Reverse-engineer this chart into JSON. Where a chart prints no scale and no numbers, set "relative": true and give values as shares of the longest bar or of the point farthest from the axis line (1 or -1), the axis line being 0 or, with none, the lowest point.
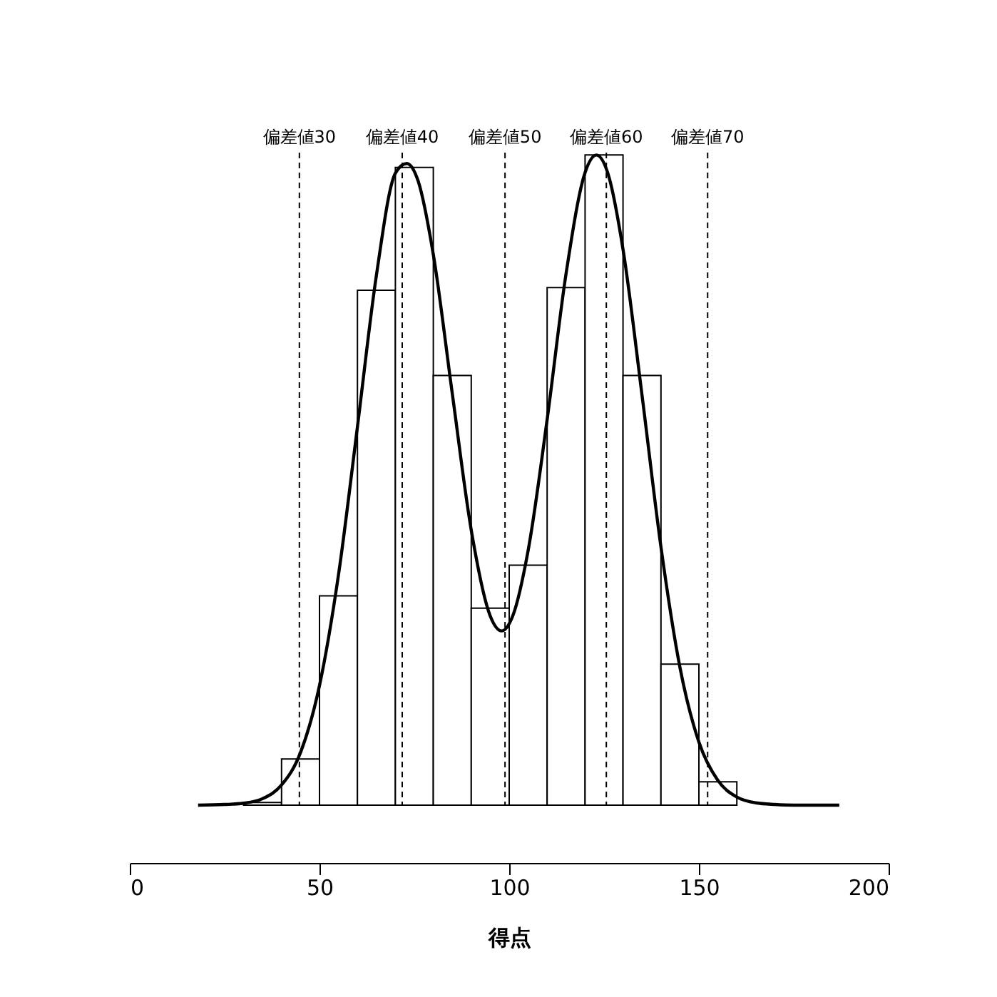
{
  "chart_data": {
    "type": "histogram",
    "relative": true,
    "xlabel": "得点",
    "xlim": [
      0,
      200
    ],
    "xticks": [
      0,
      50,
      100,
      150,
      200
    ],
    "grid": false,
    "color": "#000000",
    "bins": [
      30,
      40,
      50,
      60,
      70,
      80,
      90,
      100,
      110,
      120,
      130,
      140,
      150,
      160
    ],
    "values": [
      0.004,
      0.071,
      0.322,
      0.792,
      0.981,
      0.661,
      0.303,
      0.369,
      0.796,
      1.0,
      0.661,
      0.217,
      0.036
    ],
    "series": [
      {
        "type": "line",
        "color": "#000000",
        "x": [
          18,
          25,
          30,
          35,
          40,
          45,
          50,
          55,
          60,
          65,
          70,
          73,
          76,
          80,
          85,
          90,
          95,
          98,
          101,
          105,
          110,
          115,
          120,
          123,
          126,
          130,
          135,
          140,
          145,
          150,
          155,
          160,
          165,
          170,
          175,
          187
        ],
        "values": [
          0,
          0.001,
          0.003,
          0.01,
          0.031,
          0.081,
          0.184,
          0.354,
          0.582,
          0.815,
          0.972,
          0.987,
          0.96,
          0.847,
          0.633,
          0.423,
          0.291,
          0.268,
          0.292,
          0.392,
          0.593,
          0.818,
          0.973,
          1.0,
          0.972,
          0.855,
          0.631,
          0.397,
          0.212,
          0.097,
          0.038,
          0.0125,
          0.0035,
          0.001,
          0,
          0
        ]
      }
    ],
    "ref_lines": [
      {
        "axis": "x",
        "value": 44.7,
        "label": "偏差値30",
        "color": "#000000",
        "line_style": "dashed"
      },
      {
        "axis": "x",
        "value": 71.8,
        "label": "偏差値40",
        "color": "#000000",
        "line_style": "dashed"
      },
      {
        "axis": "x",
        "value": 98.9,
        "label": "偏差値50",
        "color": "#000000",
        "line_style": "dashed"
      },
      {
        "axis": "x",
        "value": 125.6,
        "label": "偏差値60",
        "color": "#000000",
        "line_style": "dashed"
      },
      {
        "axis": "x",
        "value": 152.3,
        "label": "偏差値70",
        "color": "#000000",
        "line_style": "dashed"
      }
    ]
  }
}
